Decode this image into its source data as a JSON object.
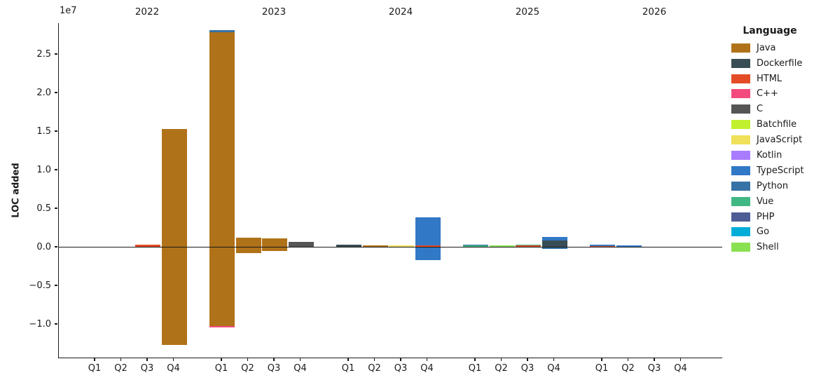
{
  "chart": {
    "y_axis_label": "LOC added",
    "offset_text": "1e7",
    "legend_title": "Language"
  },
  "chart_data": {
    "type": "bar",
    "stacked": true,
    "title": "",
    "xlabel": "",
    "ylabel": "LOC added",
    "y_unit": "LOC",
    "y_offset_multiplier": "1e7",
    "ylim": [
      -14400000,
      29000000
    ],
    "grid": false,
    "ytick_values": [
      25000000,
      20000000,
      15000000,
      10000000,
      5000000,
      0,
      -5000000,
      -10000000
    ],
    "ytick_labels": [
      "2.5",
      "2.0",
      "1.5",
      "1.0",
      "0.5",
      "0.0",
      "−0.5",
      "−1.0"
    ],
    "years": [
      "2022",
      "2023",
      "2024",
      "2025",
      "2026"
    ],
    "quarter_labels": [
      "Q1",
      "Q2",
      "Q3",
      "Q4"
    ],
    "legend": {
      "title": "Language",
      "position": "right",
      "languages": [
        {
          "name": "Java",
          "color": "#b07219"
        },
        {
          "name": "Dockerfile",
          "color": "#384d54"
        },
        {
          "name": "HTML",
          "color": "#e34c26"
        },
        {
          "name": "C++",
          "color": "#f34b7d"
        },
        {
          "name": "C",
          "color": "#555555"
        },
        {
          "name": "Batchfile",
          "color": "#c1f12e"
        },
        {
          "name": "JavaScript",
          "color": "#f1e05a"
        },
        {
          "name": "Kotlin",
          "color": "#a97bff"
        },
        {
          "name": "TypeScript",
          "color": "#3178c6"
        },
        {
          "name": "Python",
          "color": "#3572a5"
        },
        {
          "name": "Vue",
          "color": "#41b883"
        },
        {
          "name": "PHP",
          "color": "#4f5d95"
        },
        {
          "name": "Go",
          "color": "#00add8"
        },
        {
          "name": "Shell",
          "color": "#89e051"
        }
      ]
    },
    "bars": [
      {
        "year": "2022",
        "quarters": [
          {
            "label": "Q1",
            "segments": []
          },
          {
            "label": "Q2",
            "segments": []
          },
          {
            "label": "Q3",
            "segments": [
              {
                "language": "HTML",
                "loc": 300000
              }
            ]
          },
          {
            "label": "Q4",
            "segments": [
              {
                "language": "Java",
                "loc": 15300000
              },
              {
                "language": "Java",
                "loc": -12700000
              }
            ]
          }
        ]
      },
      {
        "year": "2023",
        "quarters": [
          {
            "label": "Q1",
            "segments": [
              {
                "language": "Java",
                "loc": 27800000
              },
              {
                "language": "Python",
                "loc": 300000
              },
              {
                "language": "Java",
                "loc": -10300000
              },
              {
                "language": "C++",
                "loc": -200000
              }
            ]
          },
          {
            "label": "Q2",
            "segments": [
              {
                "language": "Java",
                "loc": 1200000
              },
              {
                "language": "Java",
                "loc": -800000
              }
            ]
          },
          {
            "label": "Q3",
            "segments": [
              {
                "language": "Java",
                "loc": 1100000
              },
              {
                "language": "Java",
                "loc": -500000
              }
            ]
          },
          {
            "label": "Q4",
            "segments": [
              {
                "language": "C",
                "loc": 650000
              }
            ]
          }
        ]
      },
      {
        "year": "2024",
        "quarters": [
          {
            "label": "Q1",
            "segments": [
              {
                "language": "Dockerfile",
                "loc": 250000
              }
            ]
          },
          {
            "label": "Q2",
            "segments": [
              {
                "language": "Java",
                "loc": 200000
              }
            ]
          },
          {
            "label": "Q3",
            "segments": [
              {
                "language": "JavaScript",
                "loc": 150000
              }
            ]
          },
          {
            "label": "Q4",
            "segments": [
              {
                "language": "HTML",
                "loc": 200000
              },
              {
                "language": "TypeScript",
                "loc": 3600000
              },
              {
                "language": "TypeScript",
                "loc": -1700000
              }
            ]
          }
        ]
      },
      {
        "year": "2025",
        "quarters": [
          {
            "label": "Q1",
            "segments": [
              {
                "language": "Vue",
                "loc": 150000
              },
              {
                "language": "Python",
                "loc": 150000
              }
            ]
          },
          {
            "label": "Q2",
            "segments": [
              {
                "language": "Shell",
                "loc": 200000
              }
            ]
          },
          {
            "label": "Q3",
            "segments": [
              {
                "language": "HTML",
                "loc": 200000
              },
              {
                "language": "Vue",
                "loc": 100000
              }
            ]
          },
          {
            "label": "Q4",
            "segments": [
              {
                "language": "Dockerfile",
                "loc": 800000
              },
              {
                "language": "TypeScript",
                "loc": 450000
              },
              {
                "language": "Python",
                "loc": -250000
              }
            ]
          }
        ]
      },
      {
        "year": "2026",
        "quarters": [
          {
            "label": "Q1",
            "segments": [
              {
                "language": "HTML",
                "loc": 100000
              },
              {
                "language": "TypeScript",
                "loc": 150000
              }
            ]
          },
          {
            "label": "Q2",
            "segments": [
              {
                "language": "TypeScript",
                "loc": 150000
              }
            ]
          },
          {
            "label": "Q3",
            "segments": []
          },
          {
            "label": "Q4",
            "segments": []
          }
        ]
      }
    ]
  }
}
